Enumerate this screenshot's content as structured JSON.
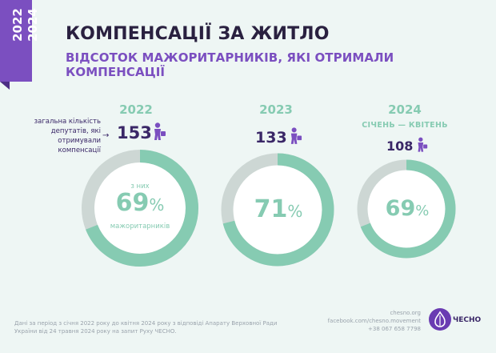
{
  "badge": {
    "years": [
      "2022",
      "2024"
    ]
  },
  "header": {
    "title": "КОМПЕНСАЦІЇ ЗА ЖИТЛО",
    "subtitle": "ВІДСОТОК МАЖОРИТАРНИКІВ, ЯКІ ОТРИМАЛИ КОМПЕНСАЦІЇ"
  },
  "side_note": {
    "text": "загальна кількість депутатів, які отримували компенсації",
    "arrow": "→"
  },
  "icons": {
    "person": "person-with-bag-icon",
    "logo": "chesno-logo-icon"
  },
  "colors": {
    "accent": "#86cbb2",
    "ring_remainder": "#cdd7d4",
    "purple": "#7b4fc0",
    "dark": "#3a2767"
  },
  "chart_data": {
    "type": "pie",
    "percent_sign": "%",
    "items": [
      {
        "year": "2022",
        "period": "",
        "total": 153,
        "share": 69,
        "inner_top": "з них",
        "inner_bottom": "мажоритарників"
      },
      {
        "year": "2023",
        "period": "",
        "total": 133,
        "share": 71,
        "inner_top": "",
        "inner_bottom": ""
      },
      {
        "year": "2024",
        "period": "СІЧЕНЬ — КВІТЕНЬ",
        "total": 108,
        "share": 69,
        "inner_top": "",
        "inner_bottom": ""
      }
    ]
  },
  "footer": {
    "note": "Дані за період з січня 2022 року до квітня 2024 року з відповіді Апарату Верховної Ради України від 24 травня 2024 року на запит Руху ЧЕСНО.",
    "contacts": [
      "chesno.org",
      "facebook.com/chesno.movement",
      "+38 067 658 7798"
    ],
    "logo": "ЧЕСНО"
  }
}
